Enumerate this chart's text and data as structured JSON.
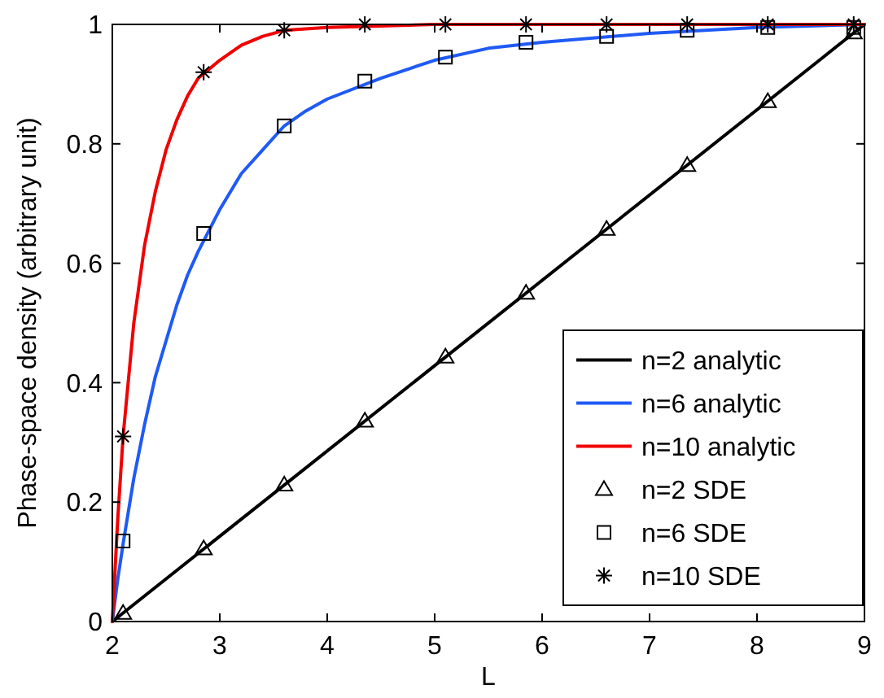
{
  "chart_data": {
    "type": "line",
    "xlabel": "L",
    "ylabel": "Phase-space density (arbitrary unit)",
    "xlim": [
      2,
      9
    ],
    "xticks": [
      2,
      3,
      4,
      5,
      6,
      7,
      8,
      9
    ],
    "ylim": [
      0,
      1
    ],
    "yticks": [
      0,
      0.2,
      0.4,
      0.6,
      0.8,
      1
    ],
    "grid": false,
    "legend": "bottom right",
    "series": [
      {
        "name": "n=2 analytic",
        "color": "#000000",
        "marker": "none",
        "line_style": "solid",
        "x": [
          2,
          9
        ],
        "values": [
          0,
          1
        ]
      },
      {
        "name": "n=6 analytic",
        "color": "#1f5af5",
        "marker": "none",
        "line_style": "solid",
        "x": [
          2,
          2.05,
          2.1,
          2.2,
          2.3,
          2.4,
          2.5,
          2.6,
          2.7,
          2.8,
          3.0,
          3.2,
          3.4,
          3.6,
          3.8,
          4.0,
          4.5,
          5.0,
          5.5,
          6.0,
          7.0,
          8.0,
          9.0
        ],
        "values": [
          0,
          0.07,
          0.13,
          0.24,
          0.33,
          0.41,
          0.47,
          0.53,
          0.58,
          0.62,
          0.69,
          0.75,
          0.79,
          0.83,
          0.855,
          0.875,
          0.91,
          0.94,
          0.96,
          0.97,
          0.985,
          0.995,
          1
        ]
      },
      {
        "name": "n=10 analytic",
        "color": "#f00000",
        "marker": "none",
        "line_style": "solid",
        "x": [
          2,
          2.05,
          2.1,
          2.2,
          2.3,
          2.4,
          2.5,
          2.6,
          2.7,
          2.8,
          3.0,
          3.2,
          3.4,
          3.6,
          4.0,
          5.0,
          9.0
        ],
        "values": [
          0,
          0.17,
          0.31,
          0.5,
          0.63,
          0.72,
          0.79,
          0.84,
          0.88,
          0.91,
          0.94,
          0.965,
          0.98,
          0.99,
          0.995,
          1,
          1
        ]
      },
      {
        "name": "n=2 SDE",
        "color": "#000000",
        "type": "scatter",
        "marker": "triangle",
        "x": [
          2.1,
          2.85,
          3.6,
          4.35,
          5.1,
          5.85,
          6.6,
          7.35,
          8.1,
          8.9
        ],
        "values": [
          0.014,
          0.122,
          0.229,
          0.336,
          0.443,
          0.55,
          0.657,
          0.764,
          0.871,
          0.986
        ]
      },
      {
        "name": "n=6 SDE",
        "color": "#000000",
        "type": "scatter",
        "marker": "square",
        "x": [
          2.1,
          2.85,
          3.6,
          4.35,
          5.1,
          5.85,
          6.6,
          7.35,
          8.1,
          8.9
        ],
        "values": [
          0.135,
          0.65,
          0.83,
          0.905,
          0.945,
          0.97,
          0.98,
          0.99,
          0.995,
          0.995
        ]
      },
      {
        "name": "n=10 SDE",
        "color": "#000000",
        "type": "scatter",
        "marker": "cross",
        "x": [
          2.1,
          2.85,
          3.6,
          4.35,
          5.1,
          5.85,
          6.6,
          7.35,
          8.1,
          8.9
        ],
        "values": [
          0.31,
          0.92,
          0.99,
          1,
          1,
          1,
          1,
          1,
          1,
          1
        ]
      }
    ]
  }
}
